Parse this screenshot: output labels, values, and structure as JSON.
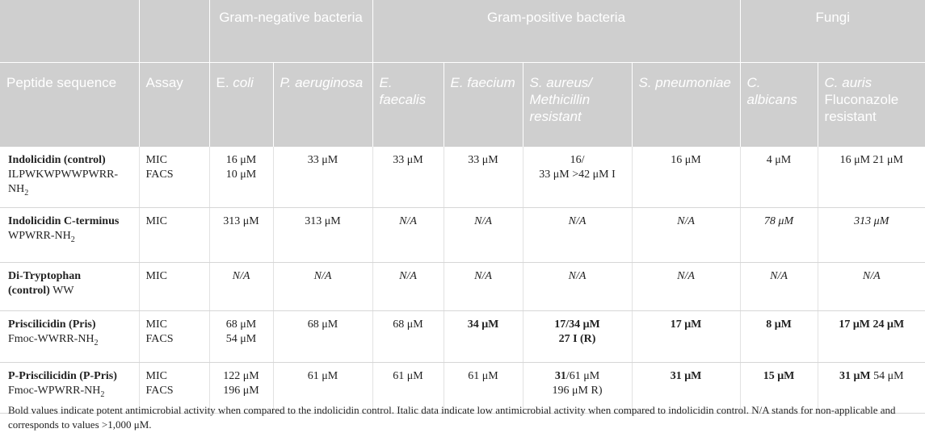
{
  "header": {
    "groups": {
      "gram_negative": "Gram-negative bacteria",
      "gram_positive": "Gram-positive bacteria",
      "fungi": "Fungi"
    },
    "columns": {
      "peptide": "Peptide sequence",
      "assay": "Assay",
      "ecoli_a": "E. ",
      "ecoli_b": "coli",
      "paer": "P. aeruginosa",
      "efaecalis": "E. faecalis",
      "efaecium": "E. faecium",
      "saureus_a": "S. aureus/ Methicillin resistant",
      "spneum": "S. pneumoniae",
      "calb": "C. albicans",
      "cauris_a": "C. auris",
      "cauris_b": "Fluconazole resistant"
    }
  },
  "rows": [
    {
      "name": "Indolicidin (control)",
      "seq_a": "ILPWKWPWWPWRR-",
      "seq_b": "NH",
      "seq_sub": "2",
      "assay_1": "MIC",
      "assay_2": "FACS",
      "ecoli_1": "16 μM",
      "ecoli_2": "10 μM",
      "paer": "33 μM",
      "efaecalis": "33 μM",
      "efaecium": "33 μM",
      "saureus_1": "16/",
      "saureus_2": "33 μM >42 μM I",
      "spneum": "16 μM",
      "calb": "4 μM",
      "cauris": "16 μM 21 μM"
    },
    {
      "name": "Indolicidin C-terminus",
      "seq_a": "WPWRR-NH",
      "seq_sub": "2",
      "assay_1": "MIC",
      "ecoli": "313 μM",
      "paer": "313 μM",
      "efaecalis": "N/A",
      "efaecium": "N/A",
      "saureus": "N/A",
      "spneum": "N/A",
      "calb": "78 μM",
      "cauris": "313 μM"
    },
    {
      "name_a": "Di-Tryptophan",
      "name_b": "(control)",
      "seq": " WW",
      "assay_1": "MIC",
      "ecoli": "N/A",
      "paer": "N/A",
      "efaecalis": "N/A",
      "efaecium": "N/A",
      "saureus": "N/A",
      "spneum": "N/A",
      "calb": "N/A",
      "cauris": "N/A"
    },
    {
      "name": "Priscilicidin (Pris)",
      "seq_a": "Fmoc-WWRR-NH",
      "seq_sub": "2",
      "assay_1": "MIC",
      "assay_2": "FACS",
      "ecoli_1": "68 μM",
      "ecoli_2": "54 μM",
      "paer": "68 μM",
      "efaecalis": "68 μM",
      "efaecium": "34 μM",
      "saureus_1": "17/34 μM",
      "saureus_2": "27 I (R)",
      "spneum": "17 μM",
      "calb": "8 μM",
      "cauris": "17 μM 24 μM"
    },
    {
      "name": "P-Priscilicidin (P-Pris)",
      "seq_a": "Fmoc-WPWRR-NH",
      "seq_sub": "2",
      "assay_1": "MIC",
      "assay_2": "FACS",
      "ecoli_1": "122 μM",
      "ecoli_2": "196 μM",
      "paer": "61 μM",
      "efaecalis": "61 μM",
      "efaecium": "61 μM",
      "saureus_1a": "31",
      "saureus_1b": "/61 μM",
      "saureus_2": "196 μM R)",
      "spneum": "31 μM",
      "calb": "15 μM",
      "cauris_a": "31 μM",
      "cauris_b": " 54 μM"
    }
  ],
  "footnote": "Bold values indicate potent antimicrobial activity when compared to the indolicidin control. Italic data indicate low antimicrobial activity when compared to indolicidin control. N/A stands for non-applicable and corresponds to values >1,000 μM."
}
